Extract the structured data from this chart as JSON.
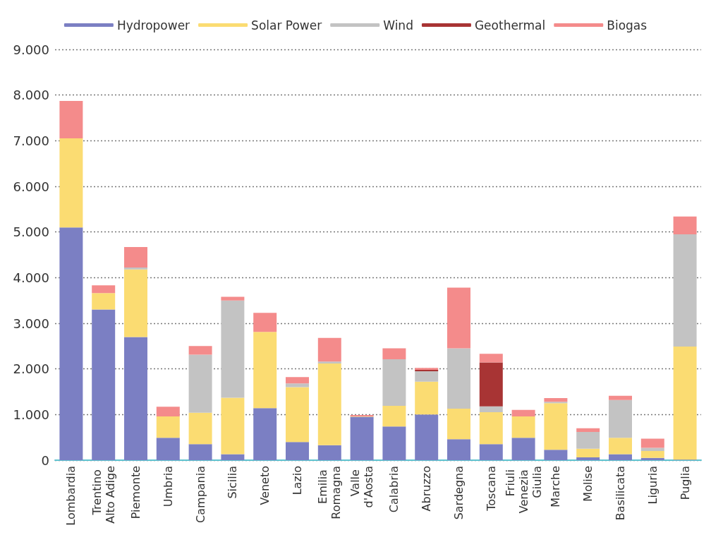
{
  "chart_data": {
    "type": "bar",
    "stacked": true,
    "categories": [
      "Lombardia",
      "Trentino Alto Adige",
      "Piemonte",
      "Umbria",
      "Campania",
      "Sicilia",
      "Veneto",
      "Lazio",
      "Emilia Romagna",
      "Valle d'Aosta",
      "Calabria",
      "Abruzzo",
      "Sardegna",
      "Toscana",
      "Friuli Venezia Giulia",
      "Marche",
      "Molise",
      "Basilicata",
      "Liguria",
      "Puglia"
    ],
    "series": [
      {
        "name": "Hydropower",
        "color": "#7b7fc3",
        "values": [
          5100,
          3300,
          2700,
          490,
          350,
          130,
          1140,
          400,
          330,
          950,
          740,
          1000,
          460,
          350,
          490,
          230,
          60,
          130,
          50,
          10
        ]
      },
      {
        "name": "Solar Power",
        "color": "#fbdc72",
        "values": [
          1950,
          360,
          1480,
          470,
          690,
          1240,
          1670,
          1200,
          1790,
          10,
          450,
          720,
          670,
          700,
          470,
          1020,
          190,
          360,
          150,
          2480
        ]
      },
      {
        "name": "Wind",
        "color": "#c3c3c3",
        "values": [
          0,
          0,
          40,
          0,
          1270,
          2130,
          0,
          80,
          40,
          0,
          1020,
          230,
          1320,
          130,
          0,
          30,
          370,
          830,
          70,
          2460
        ]
      },
      {
        "name": "Geothermal",
        "color": "#a83434",
        "values": [
          0,
          0,
          0,
          0,
          0,
          0,
          0,
          0,
          0,
          0,
          0,
          30,
          0,
          960,
          0,
          0,
          0,
          0,
          0,
          0
        ]
      },
      {
        "name": "Biogas",
        "color": "#f48b8b",
        "values": [
          820,
          170,
          450,
          210,
          190,
          80,
          420,
          140,
          520,
          30,
          240,
          40,
          1330,
          190,
          140,
          80,
          80,
          90,
          200,
          390
        ]
      }
    ],
    "ylim": [
      0,
      9000
    ],
    "yticks": [
      0,
      {
        "value": 1000,
        "label": "1.000"
      },
      {
        "value": 2000,
        "label": "2.000"
      },
      {
        "value": 3000,
        "label": "3.000"
      },
      {
        "value": 4000,
        "label": "4.000"
      },
      {
        "value": 5000,
        "label": "5.000"
      },
      {
        "value": 6000,
        "label": "6.000"
      },
      {
        "value": 7000,
        "label": "7.000"
      },
      {
        "value": 8000,
        "label": "8.000"
      },
      {
        "value": 9000,
        "label": "9.000"
      }
    ],
    "grid": "y",
    "legend": "top"
  }
}
